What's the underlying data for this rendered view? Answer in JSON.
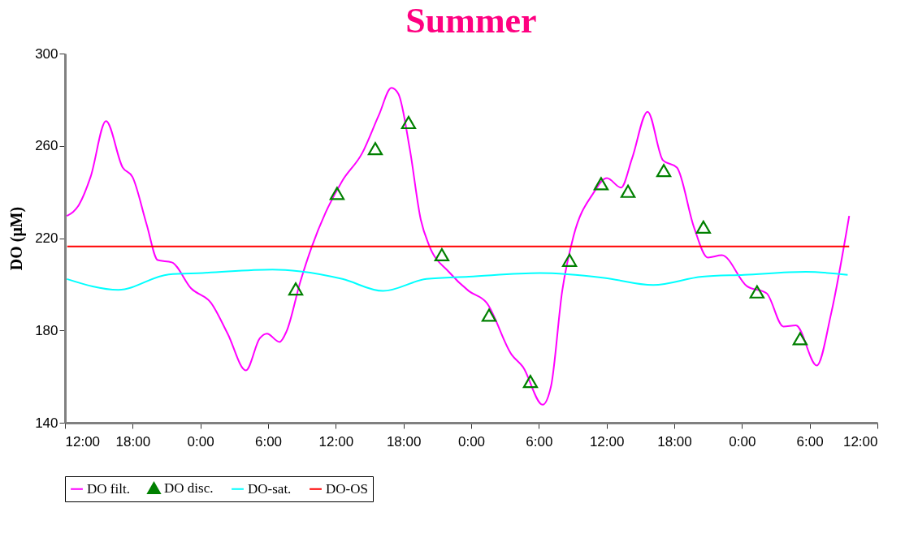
{
  "chart_data": {
    "type": "line",
    "title": "Summer",
    "ylabel": "DO (μM)",
    "xlim": [
      "--01-01T12:00",
      "--01-04T12:00"
    ],
    "ylim": [
      140,
      300
    ],
    "xticks": [
      {
        "value": "--01-01T12:00",
        "label": "12:00"
      },
      {
        "value": "--01-01T18:00",
        "label": "18:00"
      },
      {
        "value": "--01-02T00:00",
        "label": "0:00"
      },
      {
        "value": "--01-02T06:00",
        "label": "6:00"
      },
      {
        "value": "--01-02T12:00",
        "label": "12:00"
      },
      {
        "value": "--01-02T18:00",
        "label": "18:00"
      },
      {
        "value": "--01-03T00:00",
        "label": "0:00"
      },
      {
        "value": "--01-03T06:00",
        "label": "6:00"
      },
      {
        "value": "--01-03T12:00",
        "label": "12:00"
      },
      {
        "value": "--01-03T18:00",
        "label": "18:00"
      },
      {
        "value": "--01-04T00:00",
        "label": "0:00"
      },
      {
        "value": "--01-04T06:00",
        "label": "6:00"
      },
      {
        "value": "--01-04T12:00",
        "label": "12:00"
      }
    ],
    "yticks": [
      140,
      180,
      220,
      260,
      300
    ],
    "grid": false,
    "legend": "bottom",
    "series": [
      {
        "name": "DO filt.",
        "type": "line",
        "color": "#ff00ff",
        "x": [
          "--01-01T12:10",
          "--01-01T13:16",
          "--01-01T14:16",
          "--01-01T15:38",
          "--01-01T17:07",
          "--01-01T17:59",
          "--01-01T19:14",
          "--01-01T20:13",
          "--01-01T21:28",
          "--01-01T23:11",
          "--01-02T00:56",
          "--01-02T02:25",
          "--01-02T04:02",
          "--01-02T05:16",
          "--01-02T05:54",
          "--01-02T07:01",
          "--01-02T07:38",
          "--01-02T08:52",
          "--01-02T09:52",
          "--01-02T11:06",
          "--01-02T12:35",
          "--01-02T14:20",
          "--01-02T15:49",
          "--01-02T16:56",
          "--01-02T17:33",
          "--01-02T18:33",
          "--01-02T19:32",
          "--01-02T20:17",
          "--01-02T22:01",
          "--01-02T23:47",
          "--01-03T01:22",
          "--01-03T03:36",
          "--01-03T04:35",
          "--01-03T06:20",
          "--01-03T07:05",
          "--01-03T08:04",
          "--01-03T09:04",
          "--01-03T10:48",
          "--01-03T12:02",
          "--01-03T13:17",
          "--01-03T14:16",
          "--01-03T15:38",
          "--01-03T17:00",
          "--01-03T18:14",
          "--01-03T19:44",
          "--01-03T20:58",
          "--01-03T22:13",
          "--01-04T00:26",
          "--01-04T02:11",
          "--01-04T03:40",
          "--01-04T04:47",
          "--01-04T06:38",
          "--01-04T07:53",
          "--01-04T09:30"
        ],
        "values": [
          229.6,
          234.7,
          246.5,
          270.7,
          250.6,
          246.5,
          226,
          210.5,
          209.5,
          198.2,
          192,
          178.6,
          162.7,
          176.6,
          178.6,
          175,
          179.6,
          201.3,
          216.2,
          231.1,
          244.9,
          256.8,
          273.3,
          285.1,
          282.5,
          258.9,
          228,
          216.7,
          205.4,
          197.1,
          192,
          169.4,
          164.2,
          147.8,
          156,
          197.1,
          220.8,
          239.3,
          246,
          241.9,
          254.7,
          274.8,
          253.7,
          250.6,
          224.9,
          211.6,
          212.6,
          199.2,
          196.1,
          181.7,
          182.2,
          164.8,
          186.9,
          229.6
        ]
      },
      {
        "name": "DO disc.",
        "type": "scatter",
        "marker": "triangle",
        "color": "#008000",
        "x": [
          "--01-02T08:27",
          "--01-02T12:07",
          "--01-02T15:30",
          "--01-02T18:27",
          "--01-02T21:24",
          "--01-03T01:35",
          "--01-03T05:15",
          "--01-03T08:43",
          "--01-03T11:31",
          "--01-03T13:54",
          "--01-03T17:04",
          "--01-03T20:35",
          "--01-04T01:20",
          "--01-04T05:09"
        ],
        "values": [
          198,
          239.4,
          258.8,
          270.1,
          212.8,
          186.6,
          157.9,
          210.4,
          243.6,
          240.3,
          249.3,
          224.8,
          196.7,
          176.4
        ]
      },
      {
        "name": "DO-sat.",
        "type": "line",
        "color": "#00ffff",
        "x": [
          "--01-01T12:10",
          "--01-01T16:44",
          "--01-01T21:12",
          "--01-02T00:11",
          "--01-02T06:23",
          "--01-02T08:52",
          "--01-02T12:35",
          "--01-02T16:11",
          "--01-02T20:02",
          "--01-02T23:47",
          "--01-03T06:05",
          "--01-03T11:47",
          "--01-03T16:08",
          "--01-03T20:28",
          "--01-04T00:11",
          "--01-04T05:39",
          "--01-04T09:22"
        ],
        "values": [
          202.3,
          197.6,
          204.3,
          204.9,
          206.4,
          205.6,
          202.3,
          197.1,
          202.3,
          203.3,
          204.9,
          202.8,
          199.7,
          203.3,
          204.1,
          205.4,
          204.1
        ]
      },
      {
        "name": "DO-OS",
        "type": "line",
        "color": "#ff0000",
        "x": [
          "--01-01T12:12",
          "--01-04T09:30"
        ],
        "values": [
          216.4,
          216.4
        ]
      }
    ]
  }
}
